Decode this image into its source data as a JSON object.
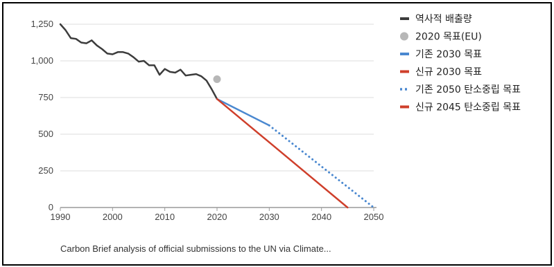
{
  "colors": {
    "historical": "#3c3c3c",
    "eu_target": "#b7b7b7",
    "old_2030": "#4a88d0",
    "new_2030": "#cf3f2b",
    "old_2050": "#4a88d0",
    "new_2045": "#cf3f2b",
    "axis": "#9a9a9a",
    "grid": "#dddddd"
  },
  "chart_data": {
    "type": "line",
    "xlabel": "",
    "ylabel": "",
    "xlim": [
      1990,
      2050
    ],
    "ylim": [
      0,
      1250
    ],
    "x_ticks": [
      "1990",
      "2000",
      "2010",
      "2020",
      "2030",
      "2040",
      "2050"
    ],
    "y_ticks": [
      "0",
      "250",
      "500",
      "750",
      "1,000",
      "1,250"
    ],
    "grid": "horizontal",
    "legend_position": "right",
    "series": [
      {
        "name": "역사적 배출량",
        "key": "historical",
        "style": "solid",
        "x": [
          1990,
          1991,
          1992,
          1993,
          1994,
          1995,
          1996,
          1997,
          1998,
          1999,
          2000,
          2001,
          2002,
          2003,
          2004,
          2005,
          2006,
          2007,
          2008,
          2009,
          2010,
          2011,
          2012,
          2013,
          2014,
          2015,
          2016,
          2017,
          2018,
          2019,
          2020
        ],
        "y": [
          1250,
          1210,
          1155,
          1150,
          1125,
          1120,
          1140,
          1105,
          1080,
          1050,
          1045,
          1060,
          1060,
          1050,
          1025,
          995,
          1000,
          970,
          970,
          905,
          945,
          925,
          920,
          940,
          900,
          905,
          910,
          895,
          865,
          805,
          740
        ]
      },
      {
        "name": "2020 목표(EU)",
        "key": "eu_target",
        "style": "point",
        "x": [
          2020
        ],
        "y": [
          875
        ]
      },
      {
        "name": "기존 2030 목표",
        "key": "old_2030",
        "style": "solid",
        "x": [
          2020,
          2030
        ],
        "y": [
          740,
          560
        ]
      },
      {
        "name": "신규 2030 목표",
        "key": "new_2030",
        "style": "solid",
        "x": [
          2020,
          2030
        ],
        "y": [
          740,
          445
        ]
      },
      {
        "name": "기존 2050 탄소중립 목표",
        "key": "old_2050",
        "style": "dotted",
        "x": [
          2030,
          2050
        ],
        "y": [
          560,
          0
        ]
      },
      {
        "name": "신규 2045 탄소중립 목표",
        "key": "new_2045",
        "style": "solid",
        "x": [
          2030,
          2045
        ],
        "y": [
          445,
          0
        ]
      }
    ],
    "source_note": "Carbon Brief analysis of official submissions to the UN via Climate..."
  }
}
